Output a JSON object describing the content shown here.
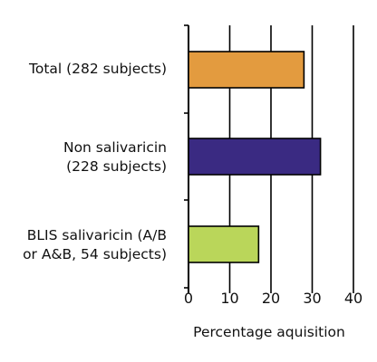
{
  "chart_data": {
    "type": "bar",
    "orientation": "horizontal",
    "categories": [
      "Total (282 subjects)",
      "Non salivaricin\n(228 subjects)",
      "BLIS salivaricin (A/B\nor A&B, 54 subjects)"
    ],
    "values": [
      28,
      32,
      17
    ],
    "colors": [
      "#e39b3f",
      "#3a2a82",
      "#bad65a"
    ],
    "xlabel": "Percentage aquisition",
    "xlim": [
      0,
      40
    ],
    "xticks": [
      "0",
      "10",
      "20",
      "30",
      "40"
    ],
    "grid": true
  }
}
